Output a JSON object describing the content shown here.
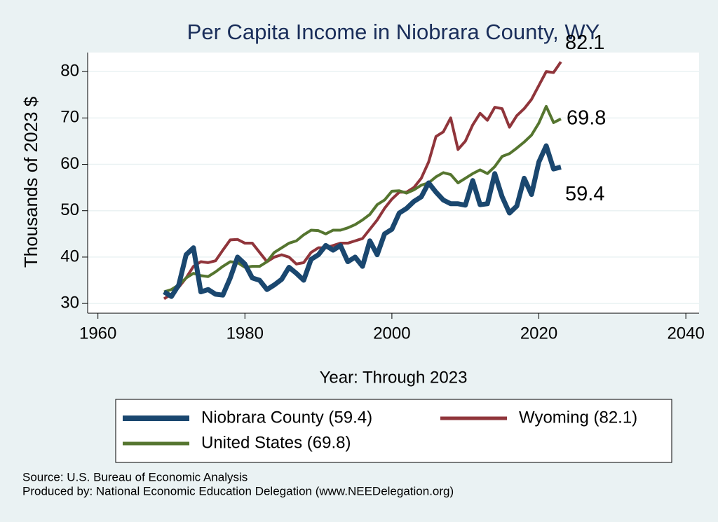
{
  "chart_data": {
    "type": "line",
    "title": "Per Capita Income in Niobrara County, WY",
    "x_label": "Year: Through 2023",
    "y_label": "Thousands of 2023 $",
    "x": [
      1969,
      1970,
      1971,
      1972,
      1973,
      1974,
      1975,
      1976,
      1977,
      1978,
      1979,
      1980,
      1981,
      1982,
      1983,
      1984,
      1985,
      1986,
      1987,
      1988,
      1989,
      1990,
      1991,
      1992,
      1993,
      1994,
      1995,
      1996,
      1997,
      1998,
      1999,
      2000,
      2001,
      2002,
      2003,
      2004,
      2005,
      2006,
      2007,
      2008,
      2009,
      2010,
      2011,
      2012,
      2013,
      2014,
      2015,
      2016,
      2017,
      2018,
      2019,
      2020,
      2021,
      2022,
      2023
    ],
    "series": [
      {
        "name": "Niobrara County (59.4)",
        "color": "#1a476f",
        "width": 7,
        "values": [
          32.5,
          31.5,
          34,
          40.5,
          42,
          32.5,
          33,
          32,
          31.8,
          35.5,
          40,
          38.5,
          35.5,
          35,
          33,
          34,
          35.2,
          37.8,
          36.5,
          35,
          39.5,
          40.5,
          42.5,
          41.5,
          42.5,
          39,
          40,
          38,
          43.5,
          40.5,
          45,
          46,
          49.5,
          50.5,
          52,
          53,
          56,
          54,
          52.3,
          51.5,
          51.5,
          51.2,
          56.5,
          51.3,
          51.5,
          58,
          53,
          49.5,
          51,
          57,
          53.5,
          60.5,
          64,
          59,
          59.4
        ]
      },
      {
        "name": "Wyoming (82.1)",
        "color": "#90353b",
        "width": 4,
        "values": [
          31,
          32,
          33.5,
          35.5,
          38,
          39,
          38.8,
          39.2,
          41.5,
          43.7,
          43.8,
          43,
          43,
          41,
          39,
          40,
          40.5,
          40,
          38.5,
          38.8,
          41,
          42,
          42,
          42.5,
          43,
          43,
          43.5,
          44,
          46,
          48,
          50.5,
          52.5,
          54,
          54,
          55,
          57,
          60.5,
          66,
          67,
          70,
          63.2,
          65,
          68.5,
          71,
          69.5,
          72.3,
          72,
          68,
          70.5,
          72,
          74,
          77,
          80,
          79.8,
          82.1
        ]
      },
      {
        "name": "United States (69.8)",
        "color": "#55752f",
        "width": 4,
        "values": [
          32.5,
          33,
          34,
          35.5,
          36.5,
          36,
          35.8,
          36.8,
          38,
          39,
          38.8,
          37.8,
          38,
          38,
          39,
          41,
          42,
          43,
          43.5,
          44.8,
          45.8,
          45.7,
          45,
          45.8,
          45.8,
          46.3,
          47,
          48,
          49.2,
          51.3,
          52.3,
          54.2,
          54.3,
          53.8,
          54.5,
          55.5,
          56,
          57.3,
          58.2,
          57.8,
          56,
          57,
          58,
          58.8,
          58,
          59.5,
          61.7,
          62.3,
          63.5,
          64.8,
          66.3,
          68.9,
          72.5,
          69,
          69.8
        ]
      }
    ],
    "xlim": [
      1958.6,
      2041.8
    ],
    "ylim": [
      27.9,
      84.1
    ],
    "xticks": [
      1960,
      1980,
      2000,
      2020,
      2040
    ],
    "yticks": [
      30,
      40,
      50,
      60,
      70,
      80
    ],
    "grid": true,
    "notes": [
      "Source: U.S. Bureau of Economic Analysis",
      "Produced by: National Economic Education Delegation (www.NEEDelegation.org)"
    ]
  }
}
